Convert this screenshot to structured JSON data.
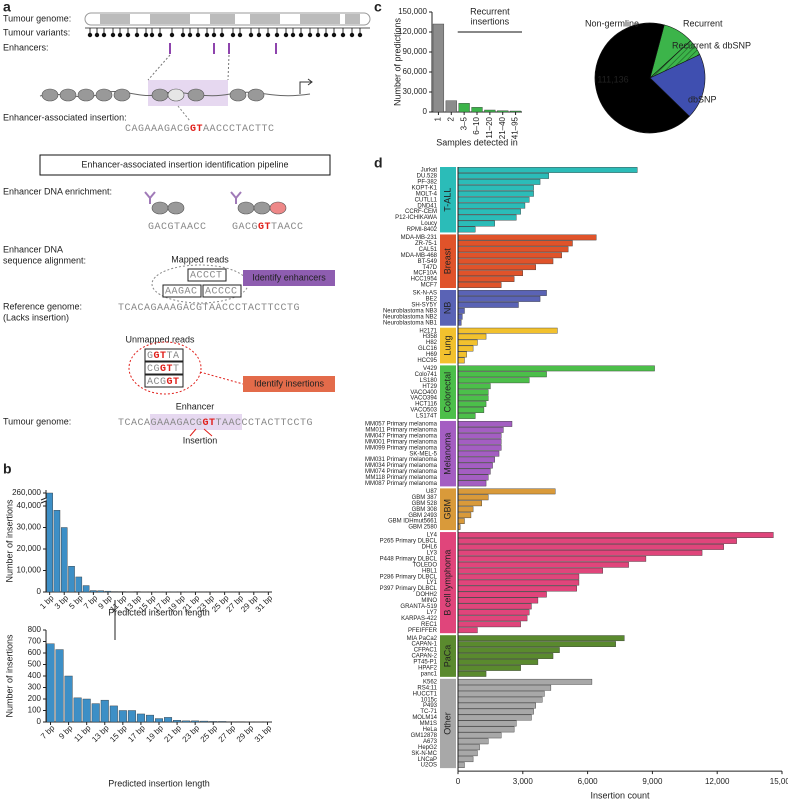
{
  "diagram": {
    "panel_label": "a",
    "tumour_genome": "Tumour genome:",
    "tumour_variants": "Tumour variants:",
    "enhancers": "Enhancers:",
    "insertion_label": "Enhancer-associated insertion:",
    "insertion_sequence": [
      "CAGAAAGACG",
      "GT",
      "AACCCTACTTC"
    ],
    "pipeline_title": "Enhancer-associated insertion identification pipeline",
    "enrichment": "Enhancer DNA enrichment:",
    "enrichment_seq_1": [
      "GACGTAACC"
    ],
    "enrichment_seq_2": [
      "GACG",
      "GT",
      "TAACC"
    ],
    "alignment": [
      "Enhancer DNA",
      "sequence alignment:"
    ],
    "mapped_reads": "Mapped reads",
    "mapped": [
      "ACCCT",
      "AAGAC",
      "ACCCC"
    ],
    "identify_enhancers": "Identify enhancers",
    "reference": [
      "Reference genome:",
      "(Lacks insertion)"
    ],
    "reference_sequence": [
      "TCACAGAAAGACGTAACCCTACTTCCTG"
    ],
    "unmapped_reads": "Unmapped reads",
    "unmapped": [
      [
        "G",
        "GT",
        "TA"
      ],
      [
        "CG",
        "GT",
        "T"
      ],
      [
        "ACG",
        "GT"
      ]
    ],
    "identify_insertions": "Identify insertions",
    "tumour_genome_2": "Tumour genome:",
    "tumour_sequence": [
      "TCACAGAAAGACG",
      "GT",
      "TAACCCTACTTCCTG"
    ],
    "enhancer": "Enhancer",
    "insertion": "Insertion"
  },
  "chart_data": [
    {
      "type": "bar",
      "panel_label": "b",
      "color": "#3d8fc6",
      "broken_axis": true,
      "y_label": "Number of insertions",
      "x_label": "Predicted insertion length",
      "categories": [
        "1 bp",
        null,
        "3 bp",
        null,
        "5 bp",
        null,
        "7 bp",
        null,
        "9 bp",
        null,
        "11 bp",
        null,
        "13 bp",
        null,
        "15 bp",
        null,
        "17 bp",
        null,
        "19 bp",
        null,
        "21 bp",
        null,
        "23 bp",
        null,
        "25 bp",
        null,
        "27 bp",
        null,
        "29 bp",
        null,
        "31 bp"
      ],
      "values": [
        260000,
        38000,
        30000,
        12000,
        7000,
        3000,
        680,
        630,
        400,
        210,
        200,
        160,
        190,
        140,
        100,
        100,
        70,
        60,
        30,
        40,
        15,
        10,
        10,
        8,
        5,
        5,
        3,
        3,
        2,
        2,
        2
      ],
      "ylim": [
        0,
        260000
      ],
      "yticks": [
        0,
        {
          "value": 10000,
          "label": "10,000"
        },
        {
          "value": 20000,
          "label": "20,000"
        },
        {
          "value": 30000,
          "label": "30,000"
        },
        {
          "value": 40000,
          "label": "40,000"
        },
        {
          "value": 260000,
          "label": "260,000"
        }
      ]
    },
    {
      "type": "bar",
      "color": "#3d8fc6",
      "broken_axis": false,
      "y_label": "Number of insertions",
      "x_label": "Predicted insertion length",
      "categories": [
        "7 bp",
        null,
        "9 bp",
        null,
        "11 bp",
        null,
        "13 bp",
        null,
        "15 bp",
        null,
        "17 bp",
        null,
        "19 bp",
        null,
        "21 bp",
        null,
        "23 bp",
        null,
        "25 bp",
        null,
        "27 bp",
        null,
        "29 bp",
        null,
        "31 bp"
      ],
      "values": [
        680,
        630,
        400,
        210,
        200,
        160,
        190,
        140,
        100,
        100,
        70,
        60,
        30,
        40,
        15,
        10,
        10,
        8,
        5,
        5,
        3,
        3,
        2,
        2,
        2
      ],
      "ylim": [
        0,
        800
      ],
      "yticks": [
        0,
        100,
        200,
        300,
        400,
        500,
        600,
        700,
        800
      ]
    },
    {
      "type": "bar",
      "panel_label": "c",
      "y_label": "Number of predictions",
      "x_label": "Samples detected in",
      "annotation": [
        "Recurrent",
        "insertions"
      ],
      "categories": [
        "1",
        "2",
        "3–5",
        "6–10",
        "11–20",
        "21–40",
        "41–95"
      ],
      "values": [
        132000,
        17000,
        13000,
        7000,
        3000,
        2000,
        1500
      ],
      "colors": [
        "#8c8c8c",
        "#8c8c8c",
        "#3cb44a",
        "#3cb44a",
        "#3cb44a",
        "#3cb44a",
        "#3cb44a"
      ],
      "ylim": [
        0,
        150000
      ],
      "yticks": [
        0,
        {
          "value": 30000,
          "label": "30,000"
        },
        {
          "value": 60000,
          "label": "60,000"
        },
        {
          "value": 90000,
          "label": "90,000"
        },
        {
          "value": 120000,
          "label": "120,000"
        },
        {
          "value": 150000,
          "label": "150,000"
        }
      ]
    },
    {
      "type": "pie",
      "categories": [
        "Recurrent",
        "Recurrent & dbSNP",
        "dbSNP",
        "Non-germline"
      ],
      "values": [
        15000,
        8000,
        32000,
        111136
      ],
      "value_labels": [
        null,
        null,
        null,
        "111,136"
      ],
      "colors": [
        "#3cb44a",
        "#3cb44a",
        "#3f4fb0",
        "#000000"
      ],
      "hatch": [
        false,
        true,
        false,
        false
      ],
      "label_colors": [
        "#3cb44a",
        "#000000",
        "#3f4fb0",
        "#000000"
      ]
    },
    {
      "type": "hbar",
      "panel_label": "d",
      "x_label": "Insertion count",
      "xlim": [
        0,
        15000
      ],
      "xticks": [
        0,
        {
          "value": 3000,
          "label": "3,000"
        },
        {
          "value": 6000,
          "label": "6,000"
        },
        {
          "value": 9000,
          "label": "9,000"
        },
        {
          "value": 12000,
          "label": "12,000"
        },
        {
          "value": 15000,
          "label": "15,000"
        }
      ],
      "groups": [
        {
          "name": "T-ALL",
          "color": "#2bbcb8",
          "categories": [
            "Jurkat",
            "DU.528",
            "PF-382",
            "KOPT-K1",
            "MOLT-4",
            "CUTLL1",
            "DND41",
            "CCRF-CEM",
            "P12-ICHIKAWA",
            "Loucy",
            "RPMI-8402"
          ],
          "values": [
            8300,
            4200,
            3800,
            3500,
            3500,
            3300,
            3100,
            2900,
            2700,
            1700,
            800
          ]
        },
        {
          "name": "Breast",
          "color": "#e0532a",
          "categories": [
            "MDA-MB-231",
            "ZR-75-1",
            "CAL51",
            "MDA-MB-468",
            "BT-549",
            "T47D",
            "MCF10A",
            "HCC1954",
            "MCF7"
          ],
          "values": [
            6400,
            5300,
            5100,
            4800,
            4400,
            3600,
            3000,
            2600,
            2000
          ]
        },
        {
          "name": "NB",
          "color": "#5a63b5",
          "categories": [
            "SK-N-AS",
            "BE2",
            "SH-SY5Y",
            "Neuroblastoma NB3",
            "Neuroblastoma NB2",
            "Neuroblastoma NB1"
          ],
          "values": [
            4100,
            3800,
            2800,
            300,
            200,
            150
          ]
        },
        {
          "name": "Lung",
          "color": "#f2c12e",
          "categories": [
            "H2171",
            "H358",
            "H82",
            "GLC16",
            "H69",
            "HCC95"
          ],
          "values": [
            4600,
            1300,
            900,
            700,
            400,
            300
          ]
        },
        {
          "name": "Colorectal",
          "color": "#4cbf4a",
          "categories": [
            "V429",
            "Colo741",
            "LS180",
            "HT29",
            "VACO400",
            "VACO394",
            "HCT116",
            "VACO503",
            "LS174T"
          ],
          "values": [
            9100,
            4100,
            3300,
            1500,
            1400,
            1400,
            1300,
            1200,
            800
          ]
        },
        {
          "name": "Melanoma",
          "color": "#a45ec2",
          "categories": [
            "MM057 Primary melanoma",
            "MM011 Primary melanoma",
            "MM047 Primary melanoma",
            "MM001 Primary melanoma",
            "MM099 Primary melanoma",
            "SK-MEL-5",
            "MM031 Primary melanoma",
            "MM034 Primary melanoma",
            "MM074 Primary melanoma",
            "MM118 Primary melanoma",
            "MM087 Primary melanoma"
          ],
          "values": [
            2500,
            2100,
            2000,
            2000,
            2000,
            1900,
            1700,
            1600,
            1500,
            1400,
            1300
          ]
        },
        {
          "name": "GBM",
          "color": "#d99a3a",
          "categories": [
            "U87",
            "GBM 387",
            "GBM 528",
            "GBM 308",
            "GBM 2493",
            "GBM IDHmut5661",
            "GBM 2580"
          ],
          "values": [
            4500,
            1400,
            1100,
            700,
            600,
            300,
            100
          ]
        },
        {
          "name": "B cell lymphoma",
          "color": "#e0457b",
          "categories": [
            "LY4",
            "P265 Primary DLBCL",
            "DHL6",
            "LY3",
            "P448 Primary DLBCL",
            "TOLEDO",
            "HBL1",
            "P286 Primary DLBCL",
            "LY1",
            "P397 Primary DLBCL",
            "DOHH2",
            "MINO",
            "GRANTA-519",
            "LY7",
            "KARPAS-422",
            "REC1",
            "PFEIFFER"
          ],
          "values": [
            14600,
            12900,
            12300,
            11300,
            8700,
            7900,
            6700,
            5600,
            5600,
            5500,
            4100,
            3700,
            3400,
            3300,
            3200,
            2900,
            900
          ]
        },
        {
          "name": "PaCa",
          "color": "#5a8a2e",
          "categories": [
            "MIA PaCa2",
            "CAPAN-1",
            "CFPAC1",
            "CAPAN-2",
            "PT45-P1",
            "HPAF2",
            "panc1"
          ],
          "values": [
            7700,
            7300,
            4700,
            4400,
            3700,
            2900,
            1300
          ]
        },
        {
          "name": "Other",
          "color": "#a8a8a8",
          "categories": [
            "K562",
            "RS4;11",
            "HUCCT1",
            "1015c",
            "P493",
            "TC-71",
            "MOLM14",
            "MM1S",
            "HeLa",
            "GM12878",
            "A673",
            "HepG2",
            "SK-N-MC",
            "LNCaP",
            "U2OS"
          ],
          "values": [
            6200,
            4300,
            4000,
            3900,
            3600,
            3500,
            3400,
            2700,
            2600,
            2000,
            1400,
            1000,
            900,
            700,
            300
          ]
        }
      ]
    }
  ]
}
